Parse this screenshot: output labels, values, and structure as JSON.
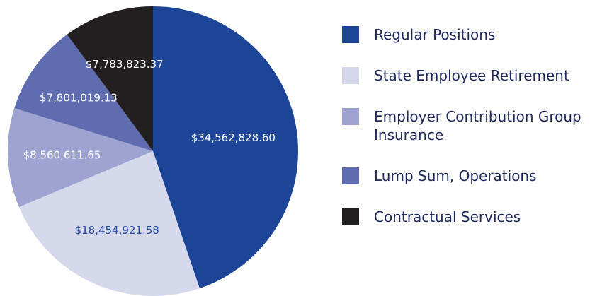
{
  "chart_data": {
    "type": "pie",
    "categories": [
      "Regular Positions",
      "State Employee Retirement",
      "Employer Contribution Group Insurance",
      "Lump Sum, Operations",
      "Contractual Services"
    ],
    "values": [
      34562828.6,
      18454921.58,
      8560611.65,
      7801019.13,
      7783823.37
    ],
    "value_labels": [
      "$34,562,828.60",
      "$18,454,921.58",
      "$8,560,611.65",
      "$7,801,019.13",
      "$7,783,823.37"
    ],
    "colors": [
      "#1c4597",
      "#d6d8ec",
      "#9ea3d1",
      "#5f6db0",
      "#231f20"
    ],
    "legend": "right"
  }
}
